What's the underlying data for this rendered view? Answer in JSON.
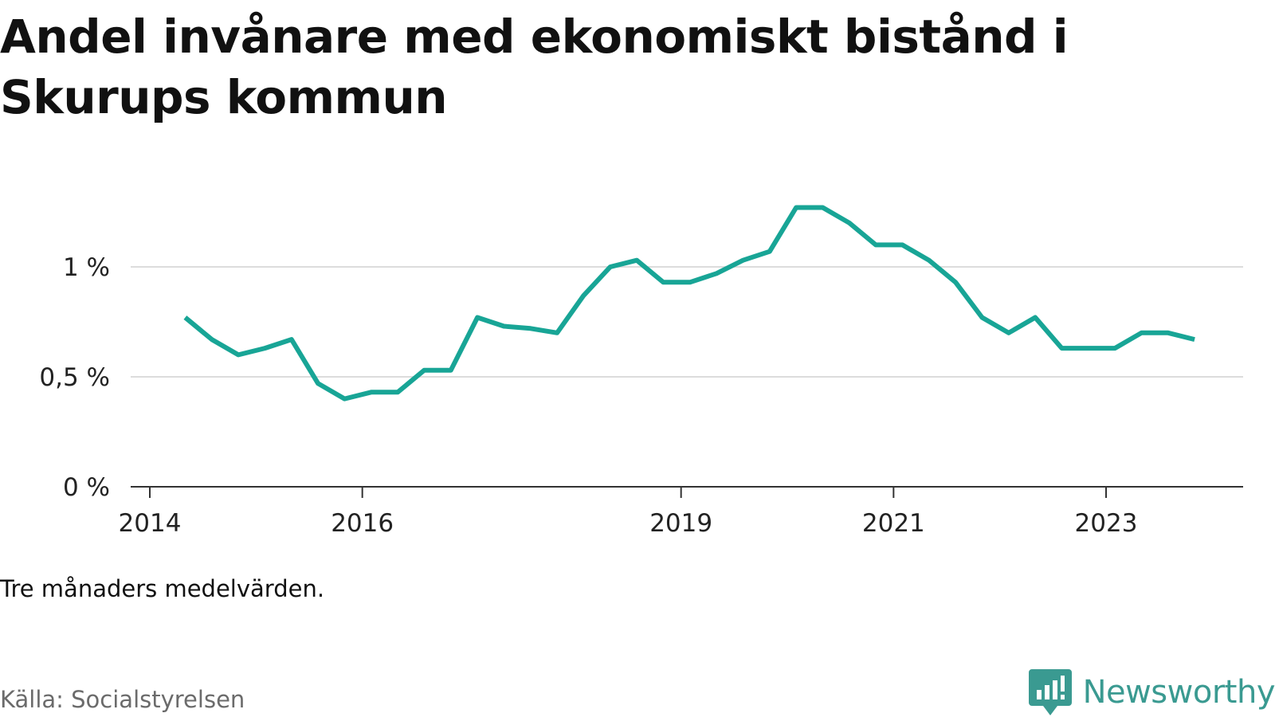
{
  "chart_data": {
    "type": "line",
    "title": "Andel invånare med ekonomiskt bistånd i Skurups kommun",
    "subtitle": "",
    "xlabel": "",
    "ylabel": "",
    "ylim": [
      0,
      1.3
    ],
    "y_ticks": [
      {
        "value": 0,
        "label": "0 %"
      },
      {
        "value": 0.5,
        "label": "0,5 %"
      },
      {
        "value": 1,
        "label": "1 %"
      }
    ],
    "x_ticks": [
      "2014",
      "2016",
      "2019",
      "2021",
      "2023"
    ],
    "grid": "horizontal",
    "line_color": "#18a596",
    "series": [
      {
        "x": [
          "2014-05",
          "2014-08",
          "2014-11",
          "2015-02",
          "2015-05",
          "2015-08",
          "2015-11",
          "2016-02",
          "2016-05",
          "2016-08",
          "2016-11",
          "2017-02",
          "2017-05",
          "2017-08",
          "2017-11",
          "2018-02",
          "2018-05",
          "2018-08",
          "2018-11",
          "2019-02",
          "2019-05",
          "2019-08",
          "2019-11",
          "2020-02",
          "2020-05",
          "2020-08",
          "2020-11",
          "2021-02",
          "2021-05",
          "2021-08",
          "2021-11",
          "2022-02",
          "2022-05",
          "2022-08",
          "2022-11",
          "2023-02",
          "2023-05",
          "2023-08",
          "2023-11"
        ],
        "values": [
          0.77,
          0.67,
          0.6,
          0.63,
          0.67,
          0.47,
          0.4,
          0.43,
          0.43,
          0.53,
          0.53,
          0.77,
          0.73,
          0.72,
          0.7,
          0.87,
          1.0,
          1.03,
          0.93,
          0.93,
          0.97,
          1.03,
          1.07,
          1.27,
          1.27,
          1.2,
          1.1,
          1.1,
          1.03,
          0.93,
          0.77,
          0.7,
          0.77,
          0.63,
          0.63,
          0.63,
          0.7,
          0.7,
          0.67
        ]
      }
    ],
    "note": "Tre månaders medelvärden.",
    "source": "Källa: Socialstyrelsen"
  },
  "brand": {
    "name": "Newsworthy",
    "logo_icon": "speech-bubble-bar-chart-icon",
    "color": "#3a9a91"
  }
}
